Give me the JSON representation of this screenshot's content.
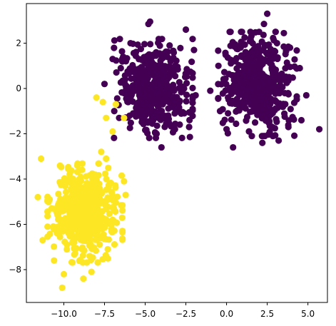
{
  "chart_data": {
    "type": "scatter",
    "title": "",
    "xlabel": "",
    "ylabel": "",
    "xlim": [
      -12.3,
      6.2
    ],
    "ylim": [
      -9.45,
      3.75
    ],
    "grid": false,
    "legend": "none",
    "x_ticks": [
      -10.0,
      -7.5,
      -5.0,
      -2.5,
      0.0,
      2.5,
      5.0
    ],
    "x_tick_labels": [
      "−10.0",
      "−7.5",
      "−5.0",
      "−2.5",
      "0.0",
      "2.5",
      "5.0"
    ],
    "y_ticks": [
      2,
      0,
      -2,
      -4,
      -6,
      -8
    ],
    "y_tick_labels": [
      "2",
      "0",
      "−2",
      "−4",
      "−6",
      "−8"
    ],
    "series": [
      {
        "color": "#440154",
        "clusters": [
          {
            "center": [
              -4.5,
              0.0
            ],
            "std": [
              1.05,
              0.95
            ],
            "count": 500
          },
          {
            "center": [
              1.9,
              0.2
            ],
            "std": [
              1.05,
              1.0
            ],
            "count": 500
          }
        ],
        "points": [
          [
            -4.7,
            2.95
          ],
          [
            -4.8,
            2.85
          ],
          [
            -5.9,
            2.0
          ],
          [
            -2.5,
            2.6
          ],
          [
            -3.5,
            1.9
          ],
          [
            -2.0,
            1.7
          ],
          [
            -7.0,
            1.3
          ],
          [
            -7.5,
            0.2
          ],
          [
            -6.6,
            -1.3
          ],
          [
            -6.9,
            -1.0
          ],
          [
            -4.0,
            -2.6
          ],
          [
            -4.3,
            -2.0
          ],
          [
            -2.3,
            -1.7
          ],
          [
            -1.9,
            -0.3
          ],
          [
            -6.5,
            0.9
          ],
          [
            2.5,
            3.3
          ],
          [
            2.3,
            2.85
          ],
          [
            2.0,
            2.5
          ],
          [
            3.1,
            2.0
          ],
          [
            3.9,
            1.8
          ],
          [
            4.5,
            0.9
          ],
          [
            5.7,
            -1.8
          ],
          [
            4.9,
            -0.3
          ],
          [
            4.6,
            -1.4
          ],
          [
            3.2,
            -2.3
          ],
          [
            2.2,
            -2.4
          ],
          [
            0.4,
            -2.6
          ],
          [
            0.0,
            -1.8
          ],
          [
            -0.4,
            -1.0
          ],
          [
            -1.0,
            -0.1
          ],
          [
            -0.5,
            1.0
          ],
          [
            0.6,
            1.8
          ],
          [
            3.8,
            -1.7
          ]
        ]
      },
      {
        "color": "#fde725",
        "clusters": [
          {
            "center": [
              -8.7,
              -5.5
            ],
            "std": [
              1.0,
              0.95
            ],
            "count": 500
          }
        ],
        "points": [
          [
            -8.0,
            -0.4
          ],
          [
            -7.6,
            -0.6
          ],
          [
            -6.8,
            -0.7
          ],
          [
            -6.3,
            -1.3
          ],
          [
            -7.0,
            -1.9
          ],
          [
            -7.4,
            -1.3
          ],
          [
            -11.4,
            -3.1
          ],
          [
            -7.7,
            -2.8
          ],
          [
            -7.4,
            -3.1
          ],
          [
            -11.6,
            -4.8
          ],
          [
            -11.3,
            -6.7
          ],
          [
            -10.6,
            -7.6
          ],
          [
            -10.0,
            -8.2
          ],
          [
            -10.1,
            -8.8
          ],
          [
            -8.8,
            -8.4
          ],
          [
            -8.3,
            -8.1
          ],
          [
            -6.3,
            -4.1
          ],
          [
            -6.2,
            -4.7
          ],
          [
            -7.0,
            -5.8
          ],
          [
            -7.3,
            -7.1
          ]
        ]
      }
    ]
  }
}
